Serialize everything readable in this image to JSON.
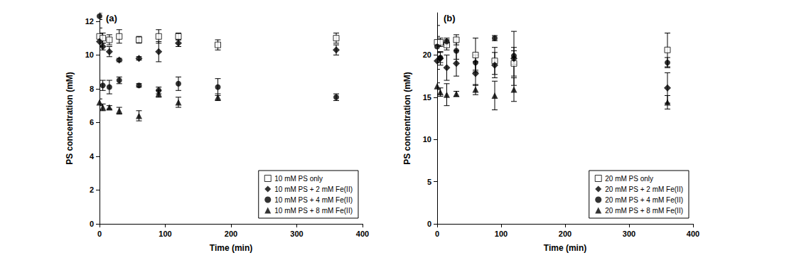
{
  "chart_data": [
    {
      "type": "scatter",
      "title": "(a)",
      "x_label": "Time (min)",
      "y_label": "PS concentration (mM)",
      "x": [
        0,
        5,
        15,
        30,
        60,
        90,
        120,
        180,
        360
      ],
      "xlim": [
        0,
        400
      ],
      "xticks": [
        0,
        100,
        200,
        300,
        400
      ],
      "ylim": [
        0,
        12.5
      ],
      "yticks": [
        0,
        2,
        4,
        6,
        8,
        10,
        12
      ],
      "grid": false,
      "legend": "lower right",
      "series": [
        {
          "name": "10 mM PS only",
          "color": "#000000",
          "marker": "square_open",
          "values": [
            11.1,
            11.0,
            10.9,
            11.1,
            10.9,
            11.1,
            11.1,
            10.6,
            11.0
          ],
          "errors": [
            0.5,
            0.3,
            0.3,
            0.4,
            0.2,
            0.4,
            0.2,
            0.3,
            0.3
          ]
        },
        {
          "name": "10 mM PS + 2 mM Fe(II)",
          "color": "#000000",
          "marker": "diamond",
          "values": [
            10.8,
            10.5,
            10.2,
            9.7,
            9.8,
            10.2,
            10.7,
            null,
            10.3
          ],
          "errors": [
            0.3,
            0.2,
            0.3,
            0.1,
            0.1,
            0.6,
            0.2,
            null,
            0.3
          ]
        },
        {
          "name": "10 mM PS + 4 mM Fe(II)",
          "color": "#000000",
          "marker": "circle",
          "values": [
            12.3,
            8.2,
            8.1,
            8.5,
            8.2,
            7.9,
            8.3,
            8.1,
            7.5
          ],
          "errors": [
            0.2,
            0.3,
            0.4,
            0.2,
            0.1,
            0.2,
            0.4,
            0.5,
            0.2
          ]
        },
        {
          "name": "10 mM PS + 8 mM Fe(II)",
          "color": "#000000",
          "marker": "triangle",
          "values": [
            7.2,
            6.9,
            6.9,
            6.7,
            6.4,
            7.7,
            7.2,
            7.5,
            null
          ],
          "errors": [
            0.2,
            0.2,
            0.1,
            0.2,
            0.3,
            0.2,
            0.3,
            0.2,
            null
          ]
        }
      ]
    },
    {
      "type": "scatter",
      "title": "(b)",
      "x_label": "Time (min)",
      "y_label": "PS concentration (mM)",
      "x": [
        0,
        5,
        15,
        30,
        60,
        90,
        120,
        360
      ],
      "xlim": [
        0,
        400
      ],
      "xticks": [
        0,
        100,
        200,
        300,
        400
      ],
      "ylim": [
        0,
        25
      ],
      "yticks": [
        0,
        5,
        10,
        15,
        20
      ],
      "grid": false,
      "legend": "lower right",
      "series": [
        {
          "name": "20 mM PS only",
          "color": "#000000",
          "marker": "square_open",
          "values": [
            21.5,
            21.5,
            21.2,
            21.8,
            20.0,
            19.3,
            19.0,
            20.6
          ],
          "errors": [
            2.0,
            0.5,
            0.6,
            0.6,
            2.0,
            1.6,
            1.5,
            2.0
          ]
        },
        {
          "name": "20 mM PS + 2 mM Fe(II)",
          "color": "#000000",
          "marker": "diamond",
          "values": [
            19.3,
            19.6,
            18.5,
            19.0,
            17.8,
            18.8,
            19.6,
            16.1
          ],
          "errors": [
            1.0,
            0.8,
            1.5,
            1.5,
            1.4,
            1.5,
            3.2,
            1.8
          ]
        },
        {
          "name": "20 mM PS + 4 mM Fe(II)",
          "color": "#000000",
          "marker": "circle",
          "values": [
            21.0,
            19.7,
            21.6,
            20.5,
            19.1,
            22.0,
            19.9,
            19.1
          ],
          "errors": [
            1.2,
            0.6,
            0.4,
            1.0,
            0.9,
            0.3,
            1.0,
            0.6
          ]
        },
        {
          "name": "20 mM PS + 8 mM Fe(II)",
          "color": "#000000",
          "marker": "triangle",
          "values": [
            16.3,
            15.6,
            15.3,
            15.4,
            15.9,
            15.2,
            15.9,
            14.4
          ],
          "errors": [
            0.4,
            0.5,
            1.3,
            0.3,
            0.6,
            1.7,
            1.4,
            0.8
          ]
        }
      ]
    }
  ]
}
